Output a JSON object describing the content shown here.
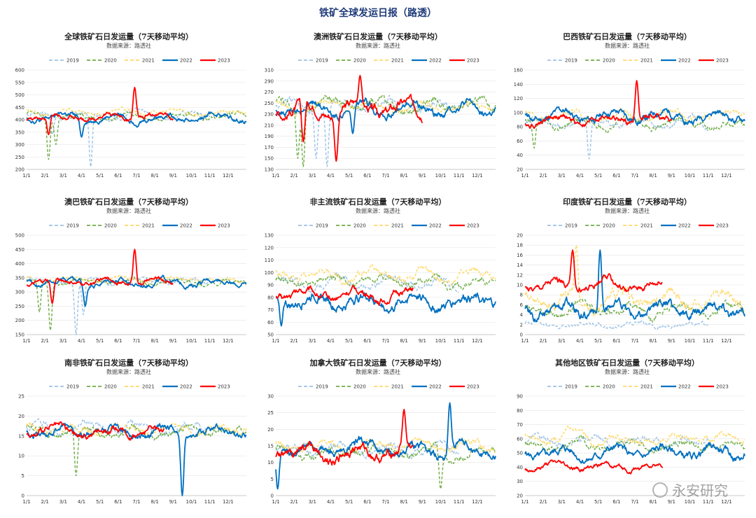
{
  "page_title": "铁矿全球发运日报（路透）",
  "watermark": "永安研究",
  "years": [
    "2019",
    "2020",
    "2021",
    "2022",
    "2023"
  ],
  "colors": {
    "2019": "#9dc3e6",
    "2020": "#70ad47",
    "2021": "#ffd966",
    "2022": "#0070c0",
    "2023": "#ff0000"
  },
  "months": [
    "1/1",
    "2/1",
    "3/1",
    "4/1",
    "5/1",
    "6/1",
    "7/1",
    "8/1",
    "9/1",
    "10/1",
    "11/1",
    "12/1"
  ],
  "chart_data": [
    {
      "type": "line",
      "title": "全球铁矿石日发运量（7天移动平均）",
      "subtitle": "数据来源：路透社",
      "ylim": [
        200,
        600
      ],
      "yticks": [
        200,
        250,
        300,
        350,
        400,
        450,
        500,
        550,
        600
      ],
      "series": [
        {
          "name": "2019",
          "base": 420,
          "amp": 30,
          "dips": [
            {
              "m": 3.5,
              "d": 210
            },
            {
              "m": 1.4,
              "d": 340
            }
          ],
          "end": 10
        },
        {
          "name": "2020",
          "base": 415,
          "amp": 30,
          "dips": [
            {
              "m": 1.2,
              "d": 240
            },
            {
              "m": 1.6,
              "d": 300
            }
          ],
          "end": 12
        },
        {
          "name": "2021",
          "base": 430,
          "amp": 25,
          "dips": [],
          "end": 12
        },
        {
          "name": "2022",
          "base": 410,
          "amp": 35,
          "dips": [
            {
              "m": 3.0,
              "d": 330
            }
          ],
          "end": 12
        },
        {
          "name": "2023",
          "base": 410,
          "amp": 30,
          "peaks": [
            {
              "m": 5.9,
              "p": 530
            }
          ],
          "dips": [
            {
              "m": 1.2,
              "d": 340
            }
          ],
          "end": 8
        }
      ]
    },
    {
      "type": "line",
      "title": "澳洲铁矿石日发运量（7天移动平均）",
      "subtitle": "数据来源：路透社",
      "ylim": [
        130,
        310
      ],
      "yticks": [
        130,
        150,
        170,
        190,
        210,
        230,
        250,
        270,
        290,
        310
      ],
      "series": [
        {
          "name": "2019",
          "base": 245,
          "amp": 25,
          "dips": [
            {
              "m": 2.8,
              "d": 135
            },
            {
              "m": 2.2,
              "d": 150
            }
          ],
          "end": 10
        },
        {
          "name": "2020",
          "base": 245,
          "amp": 25,
          "dips": [
            {
              "m": 1.2,
              "d": 150
            },
            {
              "m": 1.5,
              "d": 135
            }
          ],
          "end": 12
        },
        {
          "name": "2021",
          "base": 245,
          "amp": 20,
          "dips": [],
          "end": 12
        },
        {
          "name": "2022",
          "base": 240,
          "amp": 25,
          "dips": [
            {
              "m": 4.2,
              "d": 195
            }
          ],
          "end": 12
        },
        {
          "name": "2023",
          "base": 240,
          "amp": 30,
          "peaks": [
            {
              "m": 4.6,
              "p": 300
            }
          ],
          "dips": [
            {
              "m": 1.5,
              "d": 180
            },
            {
              "m": 3.3,
              "d": 145
            }
          ],
          "end": 8
        }
      ]
    },
    {
      "type": "line",
      "title": "巴西铁矿石日发运量（7天移动平均）",
      "subtitle": "数据来源：路透社",
      "ylim": [
        20,
        160
      ],
      "yticks": [
        20,
        40,
        60,
        80,
        100,
        120,
        140,
        160
      ],
      "series": [
        {
          "name": "2019",
          "base": 85,
          "amp": 15,
          "dips": [
            {
              "m": 3.5,
              "d": 35
            }
          ],
          "end": 10
        },
        {
          "name": "2020",
          "base": 85,
          "amp": 15,
          "dips": [
            {
              "m": 0.5,
              "d": 50
            }
          ],
          "end": 12
        },
        {
          "name": "2021",
          "base": 95,
          "amp": 15,
          "dips": [],
          "end": 12
        },
        {
          "name": "2022",
          "base": 95,
          "amp": 18,
          "dips": [],
          "end": 12
        },
        {
          "name": "2023",
          "base": 90,
          "amp": 15,
          "peaks": [
            {
              "m": 6.1,
              "p": 145
            }
          ],
          "dips": [],
          "end": 8
        }
      ]
    },
    {
      "type": "line",
      "title": "澳巴铁矿石日发运量（7天移动平均）",
      "subtitle": "数据来源：路透社",
      "ylim": [
        150,
        500
      ],
      "yticks": [
        150,
        200,
        250,
        300,
        350,
        400,
        450,
        500
      ],
      "series": [
        {
          "name": "2019",
          "base": 340,
          "amp": 25,
          "dips": [
            {
              "m": 2.7,
              "d": 150
            },
            {
              "m": 3.1,
              "d": 220
            }
          ],
          "end": 10
        },
        {
          "name": "2020",
          "base": 335,
          "amp": 25,
          "dips": [
            {
              "m": 1.3,
              "d": 165
            },
            {
              "m": 0.7,
              "d": 230
            }
          ],
          "end": 12
        },
        {
          "name": "2021",
          "base": 345,
          "amp": 20,
          "dips": [],
          "end": 12
        },
        {
          "name": "2022",
          "base": 335,
          "amp": 30,
          "dips": [
            {
              "m": 3.2,
              "d": 250
            }
          ],
          "end": 12
        },
        {
          "name": "2023",
          "base": 335,
          "amp": 25,
          "peaks": [
            {
              "m": 5.9,
              "p": 450
            }
          ],
          "dips": [
            {
              "m": 1.4,
              "d": 260
            }
          ],
          "end": 8
        }
      ]
    },
    {
      "type": "line",
      "title": "非主流铁矿石日发运量（7天移动平均）",
      "subtitle": "数据来源：路透社",
      "ylim": [
        50,
        130
      ],
      "yticks": [
        50,
        60,
        70,
        80,
        90,
        100,
        110,
        120,
        130
      ],
      "series": [
        {
          "name": "2019",
          "base": 92,
          "amp": 10,
          "dips": [],
          "end": 10
        },
        {
          "name": "2020",
          "base": 92,
          "amp": 10,
          "dips": [],
          "end": 12
        },
        {
          "name": "2021",
          "base": 98,
          "amp": 10,
          "dips": [],
          "end": 12
        },
        {
          "name": "2022",
          "base": 78,
          "amp": 14,
          "dips": [
            {
              "m": 0.3,
              "d": 57
            }
          ],
          "end": 12
        },
        {
          "name": "2023",
          "base": 82,
          "amp": 10,
          "dips": [],
          "end": 7.5
        }
      ]
    },
    {
      "type": "line",
      "title": "印度铁矿石日发运量（7天移动平均）",
      "subtitle": "数据来源：路透社",
      "ylim": [
        0,
        20
      ],
      "yticks": [
        0,
        2,
        4,
        6,
        8,
        10,
        12,
        14,
        16,
        18,
        20
      ],
      "series": [
        {
          "name": "2019",
          "base": 2,
          "amp": 1.5,
          "dips": [],
          "end": 10
        },
        {
          "name": "2020",
          "base": 5,
          "amp": 2.5,
          "dips": [],
          "end": 12
        },
        {
          "name": "2021",
          "base": 7,
          "amp": 4,
          "peaks": [
            {
              "m": 2.8,
              "p": 18
            }
          ],
          "dips": [],
          "end": 12
        },
        {
          "name": "2022",
          "base": 5,
          "amp": 3.5,
          "peaks": [
            {
              "m": 4.1,
              "p": 17
            }
          ],
          "dips": [],
          "end": 12
        },
        {
          "name": "2023",
          "base": 10,
          "amp": 2.5,
          "peaks": [
            {
              "m": 2.6,
              "p": 17
            }
          ],
          "dips": [],
          "end": 7.5
        }
      ]
    },
    {
      "type": "line",
      "title": "南非铁矿石日发运量（7天移动平均）",
      "subtitle": "数据来源：路透社",
      "ylim": [
        0,
        25
      ],
      "yticks": [
        0,
        5,
        10,
        15,
        20,
        25
      ],
      "series": [
        {
          "name": "2019",
          "base": 17,
          "amp": 3,
          "dips": [],
          "end": 10
        },
        {
          "name": "2020",
          "base": 16,
          "amp": 3,
          "dips": [
            {
              "m": 2.7,
              "d": 5
            }
          ],
          "end": 12
        },
        {
          "name": "2021",
          "base": 17,
          "amp": 3,
          "dips": [],
          "end": 12
        },
        {
          "name": "2022",
          "base": 16,
          "amp": 3,
          "dips": [
            {
              "m": 8.5,
              "d": 0
            }
          ],
          "end": 12
        },
        {
          "name": "2023",
          "base": 16,
          "amp": 3,
          "dips": [],
          "end": 7.5
        }
      ]
    },
    {
      "type": "line",
      "title": "加拿大铁矿石日发运量（7天移动平均）",
      "subtitle": "数据来源：路透社",
      "ylim": [
        0,
        30
      ],
      "yticks": [
        0,
        5,
        10,
        15,
        20,
        25,
        30
      ],
      "series": [
        {
          "name": "2019",
          "base": 14,
          "amp": 4,
          "dips": [],
          "end": 10
        },
        {
          "name": "2020",
          "base": 13,
          "amp": 4,
          "dips": [
            {
              "m": 9.0,
              "d": 2
            }
          ],
          "end": 12
        },
        {
          "name": "2021",
          "base": 15,
          "amp": 4,
          "dips": [],
          "end": 12
        },
        {
          "name": "2022",
          "base": 14,
          "amp": 5,
          "peaks": [
            {
              "m": 9.5,
              "p": 28
            }
          ],
          "dips": [
            {
              "m": 0.1,
              "d": 2
            }
          ],
          "end": 12
        },
        {
          "name": "2023",
          "base": 13,
          "amp": 5,
          "peaks": [
            {
              "m": 7.0,
              "p": 26
            }
          ],
          "dips": [],
          "end": 7.5
        }
      ]
    },
    {
      "type": "line",
      "title": "其他地区铁矿石日发运量（7天移动平均）",
      "subtitle": "数据来源：路透社",
      "ylim": [
        20,
        90
      ],
      "yticks": [
        20,
        30,
        40,
        50,
        60,
        70,
        80,
        90
      ],
      "series": [
        {
          "name": "2019",
          "base": 58,
          "amp": 8,
          "dips": [],
          "end": 10
        },
        {
          "name": "2020",
          "base": 55,
          "amp": 8,
          "dips": [],
          "end": 12
        },
        {
          "name": "2021",
          "base": 60,
          "amp": 8,
          "dips": [],
          "end": 12
        },
        {
          "name": "2022",
          "base": 50,
          "amp": 10,
          "dips": [],
          "end": 12
        },
        {
          "name": "2023",
          "base": 40,
          "amp": 6,
          "dips": [],
          "end": 7.5
        }
      ]
    }
  ]
}
